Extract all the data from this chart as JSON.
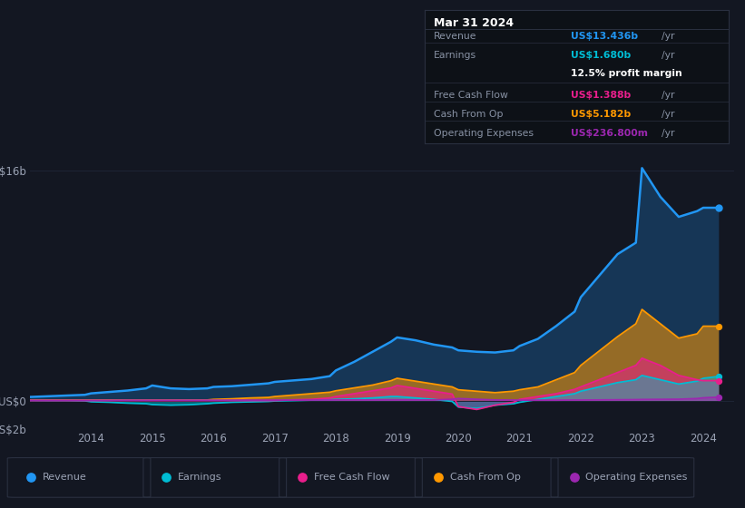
{
  "background_color": "#131722",
  "plot_bg_color": "#131722",
  "grid_color": "#1e2535",
  "text_color": "#9ba3b5",
  "years": [
    2013.0,
    2013.3,
    2013.6,
    2013.9,
    2014.0,
    2014.3,
    2014.6,
    2014.9,
    2015.0,
    2015.3,
    2015.6,
    2015.9,
    2016.0,
    2016.3,
    2016.6,
    2016.9,
    2017.0,
    2017.3,
    2017.6,
    2017.9,
    2018.0,
    2018.3,
    2018.6,
    2018.9,
    2019.0,
    2019.3,
    2019.6,
    2019.9,
    2020.0,
    2020.3,
    2020.6,
    2020.9,
    2021.0,
    2021.3,
    2021.6,
    2021.9,
    2022.0,
    2022.3,
    2022.6,
    2022.9,
    2023.0,
    2023.3,
    2023.6,
    2023.9,
    2024.0,
    2024.25
  ],
  "revenue": [
    0.25,
    0.3,
    0.35,
    0.4,
    0.5,
    0.6,
    0.7,
    0.85,
    1.05,
    0.85,
    0.8,
    0.85,
    0.95,
    1.0,
    1.1,
    1.2,
    1.3,
    1.4,
    1.5,
    1.7,
    2.1,
    2.7,
    3.4,
    4.1,
    4.4,
    4.2,
    3.9,
    3.7,
    3.5,
    3.4,
    3.35,
    3.5,
    3.8,
    4.3,
    5.2,
    6.2,
    7.2,
    8.7,
    10.2,
    11.0,
    16.2,
    14.2,
    12.8,
    13.2,
    13.436,
    13.436
  ],
  "earnings": [
    0.01,
    0.0,
    0.0,
    -0.02,
    -0.08,
    -0.12,
    -0.18,
    -0.22,
    -0.28,
    -0.32,
    -0.29,
    -0.22,
    -0.18,
    -0.12,
    -0.09,
    -0.06,
    -0.03,
    0.0,
    0.03,
    0.06,
    0.08,
    0.12,
    0.18,
    0.28,
    0.28,
    0.18,
    0.08,
    -0.06,
    -0.45,
    -0.55,
    -0.32,
    -0.22,
    -0.12,
    0.08,
    0.28,
    0.48,
    0.65,
    0.95,
    1.25,
    1.45,
    1.75,
    1.45,
    1.15,
    1.35,
    1.55,
    1.68
  ],
  "free_cash_flow": [
    0.0,
    0.0,
    0.0,
    0.0,
    0.0,
    0.0,
    0.0,
    0.0,
    0.0,
    0.0,
    0.0,
    0.0,
    0.0,
    0.0,
    0.0,
    0.0,
    0.0,
    0.05,
    0.08,
    0.18,
    0.28,
    0.48,
    0.68,
    0.88,
    1.05,
    0.85,
    0.65,
    0.45,
    -0.42,
    -0.62,
    -0.32,
    -0.12,
    0.08,
    0.28,
    0.48,
    0.78,
    0.95,
    1.45,
    1.95,
    2.45,
    2.95,
    2.45,
    1.75,
    1.45,
    1.388,
    1.388
  ],
  "cash_from_op": [
    0.04,
    0.04,
    0.04,
    0.04,
    0.04,
    0.04,
    0.04,
    0.04,
    0.04,
    0.04,
    0.04,
    0.04,
    0.08,
    0.12,
    0.18,
    0.22,
    0.28,
    0.38,
    0.48,
    0.58,
    0.68,
    0.88,
    1.08,
    1.38,
    1.55,
    1.35,
    1.15,
    0.95,
    0.75,
    0.65,
    0.55,
    0.65,
    0.75,
    0.95,
    1.45,
    1.95,
    2.45,
    3.45,
    4.45,
    5.35,
    6.35,
    5.35,
    4.35,
    4.65,
    5.182,
    5.182
  ],
  "op_expenses": [
    0.02,
    0.02,
    0.02,
    0.02,
    0.02,
    0.02,
    0.025,
    0.025,
    0.025,
    0.025,
    0.025,
    0.025,
    0.025,
    0.025,
    0.025,
    0.025,
    0.03,
    0.03,
    0.035,
    0.035,
    0.04,
    0.04,
    0.04,
    0.04,
    0.04,
    0.04,
    0.04,
    0.09,
    0.14,
    0.09,
    0.04,
    0.035,
    0.025,
    0.025,
    0.025,
    0.035,
    0.035,
    0.045,
    0.055,
    0.065,
    0.075,
    0.085,
    0.095,
    0.14,
    0.19,
    0.2368
  ],
  "revenue_color": "#2196f3",
  "earnings_color": "#00bcd4",
  "free_cash_flow_color": "#e91e8c",
  "cash_from_op_color": "#ff9800",
  "op_expenses_color": "#9c27b0",
  "ylim": [
    -2,
    18
  ],
  "yticks": [
    -2,
    0,
    16
  ],
  "ytick_labels": [
    "-US$2b",
    "US$0",
    "US$16b"
  ],
  "xtick_years": [
    2014,
    2015,
    2016,
    2017,
    2018,
    2019,
    2020,
    2021,
    2022,
    2023,
    2024
  ],
  "info_box": {
    "date": "Mar 31 2024",
    "rows": [
      {
        "label": "Revenue",
        "value": "US$13.436b",
        "value_color": "#2196f3",
        "suffix": "/yr",
        "extra": null
      },
      {
        "label": "Earnings",
        "value": "US$1.680b",
        "value_color": "#00bcd4",
        "suffix": "/yr",
        "extra": "12.5% profit margin"
      },
      {
        "label": "Free Cash Flow",
        "value": "US$1.388b",
        "value_color": "#e91e8c",
        "suffix": "/yr",
        "extra": null
      },
      {
        "label": "Cash From Op",
        "value": "US$5.182b",
        "value_color": "#ff9800",
        "suffix": "/yr",
        "extra": null
      },
      {
        "label": "Operating Expenses",
        "value": "US$236.800m",
        "value_color": "#9c27b0",
        "suffix": "/yr",
        "extra": null
      }
    ]
  },
  "legend_items": [
    {
      "label": "Revenue",
      "color": "#2196f3"
    },
    {
      "label": "Earnings",
      "color": "#00bcd4"
    },
    {
      "label": "Free Cash Flow",
      "color": "#e91e8c"
    },
    {
      "label": "Cash From Op",
      "color": "#ff9800"
    },
    {
      "label": "Operating Expenses",
      "color": "#9c27b0"
    }
  ]
}
